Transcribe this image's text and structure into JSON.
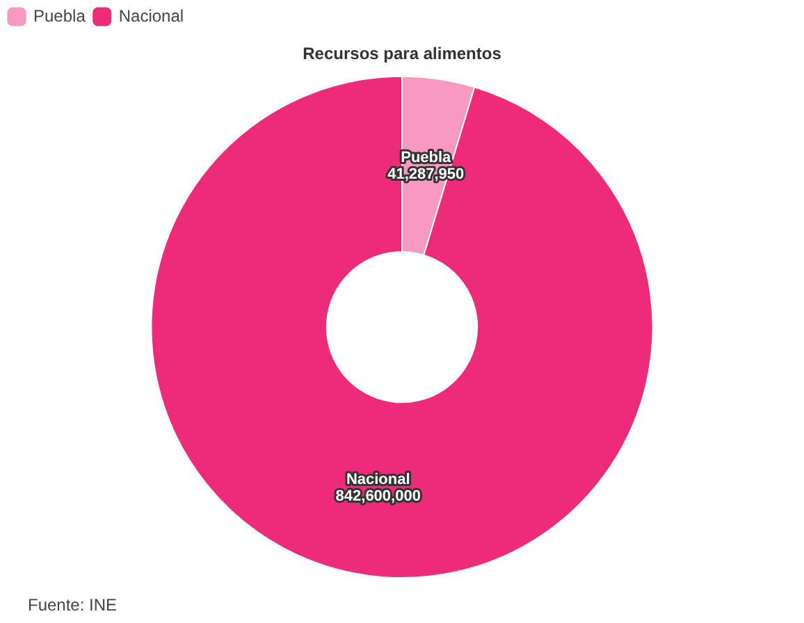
{
  "chart_data": {
    "type": "donut",
    "title": "Recursos para alimentos",
    "categories": [
      "Puebla",
      "Nacional"
    ],
    "values": [
      41287950,
      842600000
    ],
    "colors": [
      "#f799c0",
      "#ee2a7b"
    ],
    "value_labels": [
      "41,287,950",
      "842,600,000"
    ],
    "legend": "top left",
    "annotations": [
      "Fuente: INE"
    ]
  }
}
